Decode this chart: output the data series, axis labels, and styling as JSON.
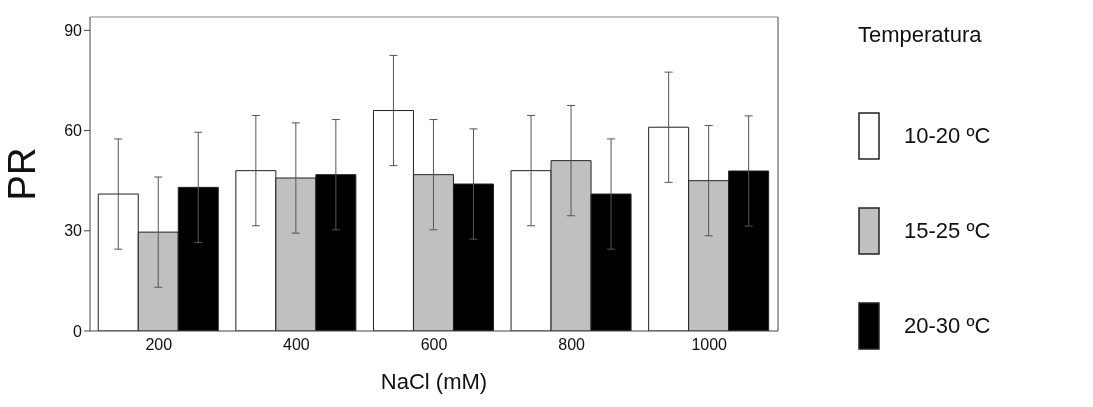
{
  "chart_data": {
    "type": "bar",
    "xlabel": "NaCl  (mM)",
    "ylabel": "PR",
    "legend_title": "Temperatura",
    "categories": [
      "200",
      "400",
      "600",
      "800",
      "1000"
    ],
    "series": [
      {
        "name": "10-20 ºC",
        "color": "#ffffff",
        "values": [
          41,
          48,
          66,
          48,
          61
        ],
        "errors": [
          16.5,
          16.5,
          16.5,
          16.5,
          16.5
        ]
      },
      {
        "name": "15-25 ºC",
        "color": "#c0c0c0",
        "values": [
          29.6,
          45.8,
          46.8,
          51,
          45
        ],
        "errors": [
          16.5,
          16.5,
          16.5,
          16.5,
          16.5
        ]
      },
      {
        "name": "20-30 ºC",
        "color": "#000000",
        "values": [
          43,
          46.8,
          44,
          41,
          47.9
        ],
        "errors": [
          16.5,
          16.5,
          16.5,
          16.5,
          16.5
        ]
      }
    ],
    "ylim": [
      0,
      94
    ],
    "yticks": [
      0,
      30,
      60,
      90
    ],
    "grid": false,
    "legend": "right"
  }
}
